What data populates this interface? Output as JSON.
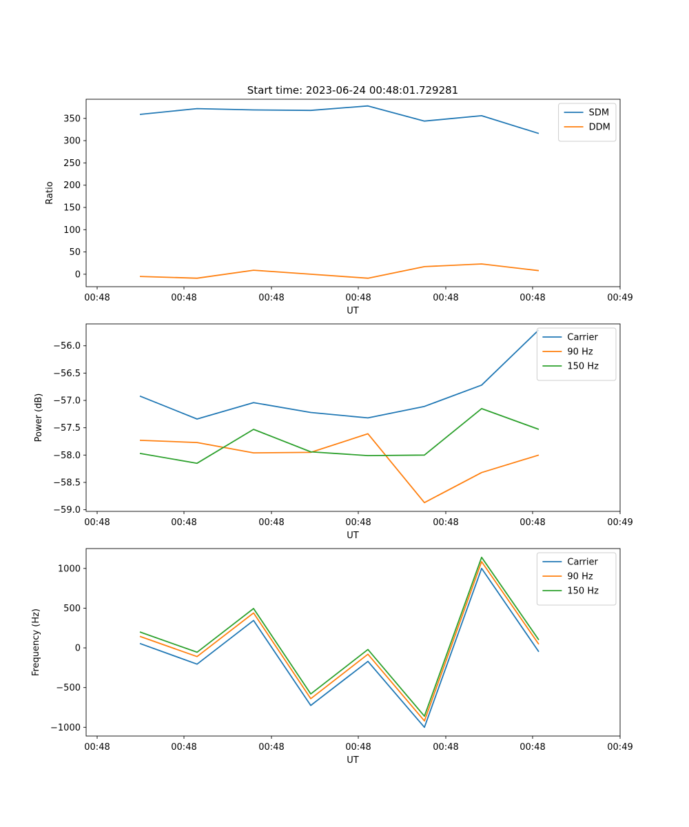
{
  "figure": {
    "title": "Start time: 2023-06-24 00:48:01.729281"
  },
  "chart_data": [
    {
      "type": "line",
      "xlabel": "UT",
      "ylabel": "Ratio",
      "x_tick_labels": [
        "00:48",
        "00:48",
        "00:48",
        "00:48",
        "00:48",
        "00:48",
        "00:49"
      ],
      "y_ticks": [
        0,
        50,
        100,
        150,
        200,
        250,
        300,
        350
      ],
      "ylim": [
        -28,
        393
      ],
      "legend_position": "top-right",
      "grid": false,
      "series": [
        {
          "name": "SDM",
          "color": "#1f77b4",
          "values": [
            359,
            372,
            369,
            368,
            378,
            344,
            356,
            316
          ]
        },
        {
          "name": "DDM",
          "color": "#ff7f0e",
          "values": [
            -5,
            -9,
            9,
            0,
            -9,
            17,
            23,
            8
          ]
        }
      ]
    },
    {
      "type": "line",
      "xlabel": "UT",
      "ylabel": "Power (dB)",
      "x_tick_labels": [
        "00:48",
        "00:48",
        "00:48",
        "00:48",
        "00:48",
        "00:48",
        "00:49"
      ],
      "y_ticks": [
        -59.0,
        -58.5,
        -58.0,
        -57.5,
        -57.0,
        -56.5,
        -56.0
      ],
      "y_tick_labels": [
        "−59.0",
        "−58.5",
        "−58.0",
        "−57.5",
        "−57.0",
        "−56.5",
        "−56.0"
      ],
      "ylim": [
        -59.03,
        -55.6
      ],
      "legend_position": "top-right",
      "grid": false,
      "series": [
        {
          "name": "Carrier",
          "color": "#1f77b4",
          "values": [
            -56.92,
            -57.34,
            -57.04,
            -57.22,
            -57.32,
            -57.11,
            -56.72,
            -55.71
          ]
        },
        {
          "name": "90 Hz",
          "color": "#ff7f0e",
          "values": [
            -57.73,
            -57.77,
            -57.96,
            -57.95,
            -57.61,
            -58.87,
            -58.32,
            -58.0
          ]
        },
        {
          "name": "150 Hz",
          "color": "#2ca02c",
          "values": [
            -57.97,
            -58.15,
            -57.53,
            -57.94,
            -58.01,
            -58.0,
            -57.15,
            -57.53
          ]
        }
      ]
    },
    {
      "type": "line",
      "xlabel": "UT",
      "ylabel": "Frequency (Hz)",
      "x_tick_labels": [
        "00:48",
        "00:48",
        "00:48",
        "00:48",
        "00:48",
        "00:48",
        "00:49"
      ],
      "y_ticks": [
        -1000,
        -500,
        0,
        500,
        1000
      ],
      "y_tick_labels": [
        "−1000",
        "−500",
        "0",
        "500",
        "1000"
      ],
      "ylim": [
        -1110,
        1250
      ],
      "legend_position": "top-right",
      "grid": false,
      "series": [
        {
          "name": "Carrier",
          "color": "#1f77b4",
          "values": [
            55,
            -205,
            345,
            -725,
            -170,
            -1000,
            1000,
            -50
          ]
        },
        {
          "name": "90 Hz",
          "color": "#ff7f0e",
          "values": [
            145,
            -110,
            440,
            -640,
            -80,
            -920,
            1085,
            45
          ]
        },
        {
          "name": "150 Hz",
          "color": "#2ca02c",
          "values": [
            200,
            -55,
            495,
            -580,
            -20,
            -860,
            1140,
            100
          ]
        }
      ]
    }
  ]
}
